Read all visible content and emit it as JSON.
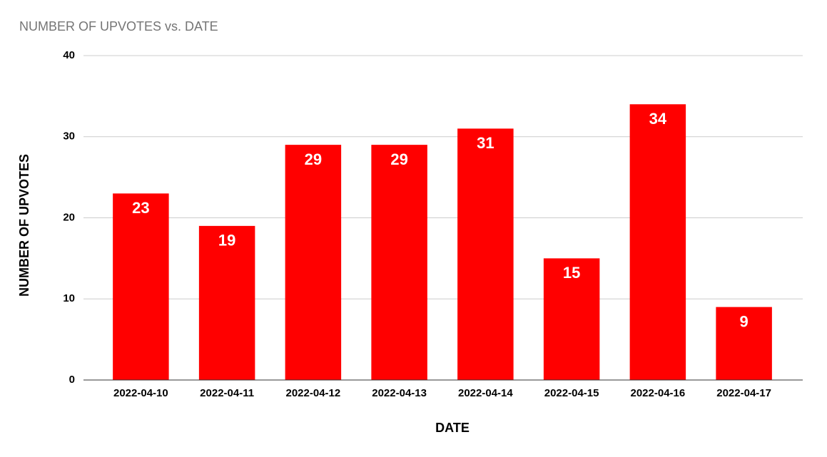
{
  "chart_data": {
    "type": "bar",
    "title": "NUMBER OF UPVOTES vs. DATE",
    "x_label": "DATE",
    "y_label": "NUMBER OF UPVOTES",
    "categories": [
      "2022-04-10",
      "2022-04-11",
      "2022-04-12",
      "2022-04-13",
      "2022-04-14",
      "2022-04-15",
      "2022-04-16",
      "2022-04-17"
    ],
    "values": [
      23,
      19,
      29,
      29,
      31,
      15,
      34,
      9
    ],
    "color": "#ff0000",
    "ylim": [
      0,
      40
    ],
    "yticks": [
      0,
      10,
      20,
      30,
      40
    ],
    "grid": true,
    "data_labels": true
  }
}
